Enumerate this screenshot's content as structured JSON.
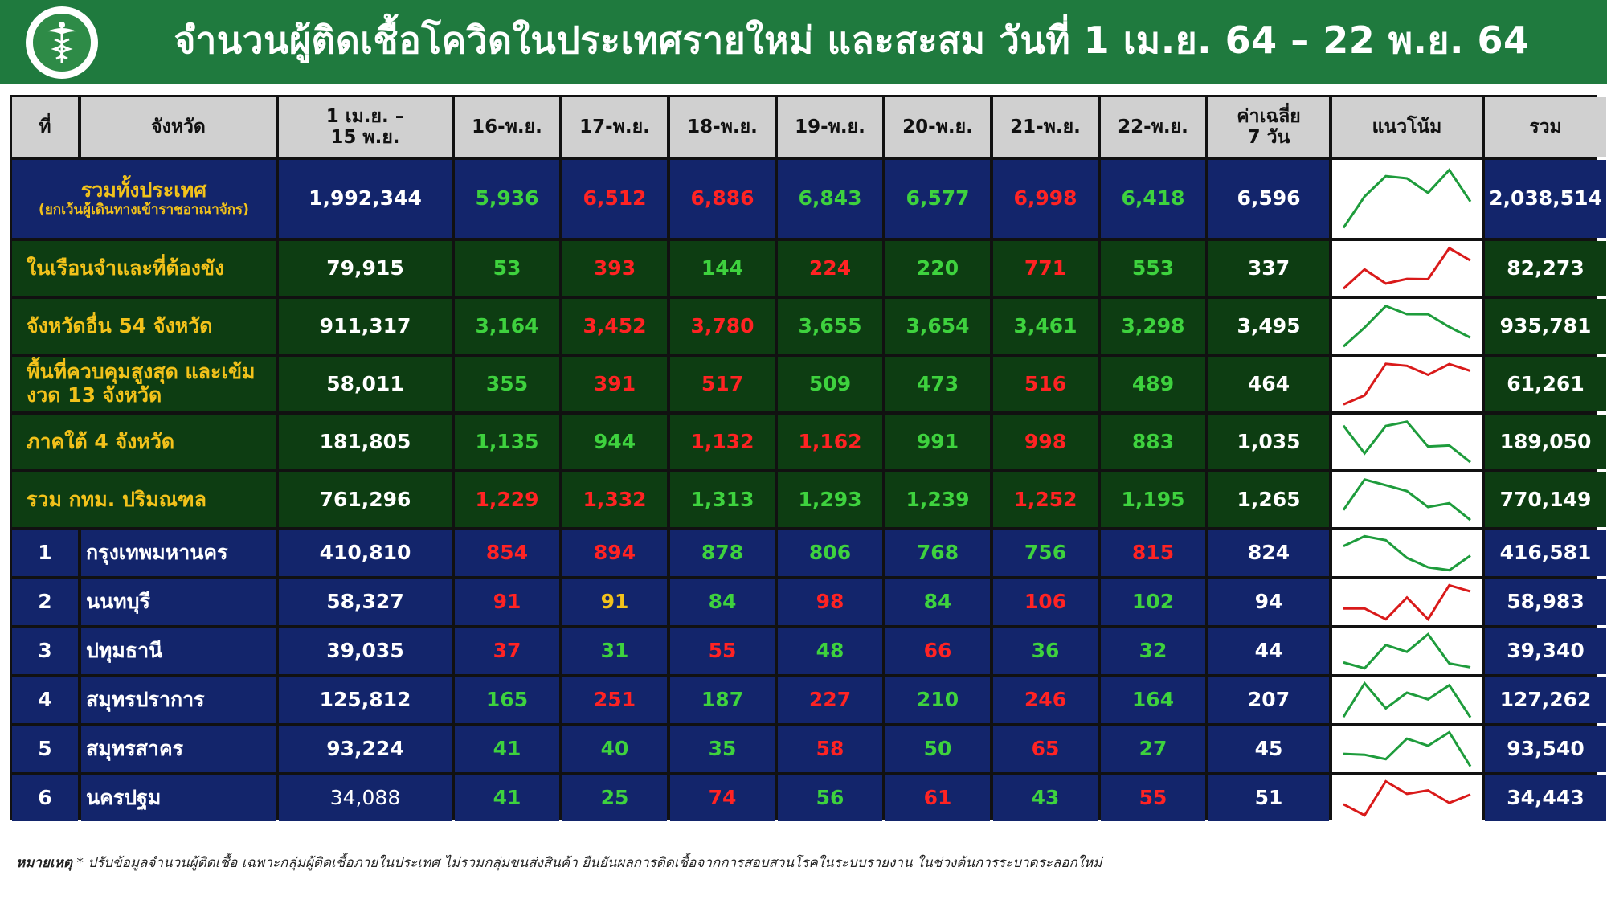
{
  "title": "จำนวนผู้ติดเชื้อโควิดในประเทศรายใหม่ และสะสม วันที่ 1 เม.ย. 64 – 22 พ.ย. 64",
  "colors": {
    "header_green": "#1f7a3e",
    "navy": "#13256b",
    "dark_green": "#0d3d12",
    "increase_red": "#ff2323",
    "decrease_green": "#3ed23e",
    "label_yellow": "#f2c21b"
  },
  "icons": {
    "logo": "ministry-of-public-health-seal"
  },
  "headers": {
    "no": "ที่",
    "province": "จังหวัด",
    "cumulative_line1": "1 เม.ย. –",
    "cumulative_line2": "15 พ.ย.",
    "days": [
      "16-พ.ย.",
      "17-พ.ย.",
      "18-พ.ย.",
      "19-พ.ย.",
      "20-พ.ย.",
      "21-พ.ย.",
      "22-พ.ย."
    ],
    "avg_line1": "ค่าเฉลี่ย",
    "avg_line2": "7 วัน",
    "trend": "แนวโน้ม",
    "total": "รวม"
  },
  "summary_rows": [
    {
      "label": "รวมทั้งประเทศ",
      "sublabel": "(ยกเว้นผู้เดินทางเข้าราชอาณาจักร)",
      "cumulative": "1,992,344",
      "days": [
        "5,936",
        "6,512",
        "6,886",
        "6,843",
        "6,577",
        "6,998",
        "6,418"
      ],
      "day_colors": [
        "g",
        "r",
        "r",
        "g",
        "g",
        "r",
        "g"
      ],
      "avg": "6,596",
      "total": "2,038,514",
      "trend": [
        5936,
        6512,
        6886,
        6843,
        6577,
        6998,
        6418
      ],
      "trend_color": "#1e9c3c"
    },
    {
      "label": "ในเรือนจำและที่ต้องขัง",
      "cumulative": "79,915",
      "days": [
        "53",
        "393",
        "144",
        "224",
        "220",
        "771",
        "553"
      ],
      "day_colors": [
        "g",
        "r",
        "g",
        "r",
        "g",
        "r",
        "g"
      ],
      "avg": "337",
      "total": "82,273",
      "trend": [
        53,
        393,
        144,
        224,
        220,
        771,
        553
      ],
      "trend_color": "#d91a1a"
    },
    {
      "label": "จังหวัดอื่น 54 จังหวัด",
      "cumulative": "911,317",
      "days": [
        "3,164",
        "3,452",
        "3,780",
        "3,655",
        "3,654",
        "3,461",
        "3,298"
      ],
      "day_colors": [
        "g",
        "r",
        "r",
        "g",
        "g",
        "g",
        "g"
      ],
      "avg": "3,495",
      "total": "935,781",
      "trend": [
        3164,
        3452,
        3780,
        3655,
        3654,
        3461,
        3298
      ],
      "trend_color": "#1e9c3c"
    },
    {
      "label": "พื้นที่ควบคุมสูงสุด และเข้มงวด 13 จังหวัด",
      "cumulative": "58,011",
      "days": [
        "355",
        "391",
        "517",
        "509",
        "473",
        "516",
        "489"
      ],
      "day_colors": [
        "g",
        "r",
        "r",
        "g",
        "g",
        "r",
        "g"
      ],
      "avg": "464",
      "total": "61,261",
      "trend": [
        355,
        391,
        517,
        509,
        473,
        516,
        489
      ],
      "trend_color": "#d91a1a"
    },
    {
      "label": "ภาคใต้ 4 จังหวัด",
      "cumulative": "181,805",
      "days": [
        "1,135",
        "944",
        "1,132",
        "1,162",
        "991",
        "998",
        "883"
      ],
      "day_colors": [
        "g",
        "g",
        "r",
        "r",
        "g",
        "r",
        "g"
      ],
      "avg": "1,035",
      "total": "189,050",
      "trend": [
        1135,
        944,
        1132,
        1162,
        991,
        998,
        883
      ],
      "trend_color": "#1e9c3c"
    },
    {
      "label": "รวม กทม. ปริมณฑล",
      "cumulative": "761,296",
      "days": [
        "1,229",
        "1,332",
        "1,313",
        "1,293",
        "1,239",
        "1,252",
        "1,195"
      ],
      "day_colors": [
        "r",
        "r",
        "g",
        "g",
        "g",
        "r",
        "g"
      ],
      "avg": "1,265",
      "total": "770,149",
      "trend": [
        1229,
        1332,
        1313,
        1293,
        1239,
        1252,
        1195
      ],
      "trend_color": "#1e9c3c"
    }
  ],
  "province_rows": [
    {
      "no": "1",
      "name": "กรุงเทพมหานคร",
      "cumulative": "410,810",
      "days": [
        "854",
        "894",
        "878",
        "806",
        "768",
        "756",
        "815"
      ],
      "day_colors": [
        "r",
        "r",
        "g",
        "g",
        "g",
        "g",
        "r"
      ],
      "avg": "824",
      "total": "416,581",
      "trend": [
        854,
        894,
        878,
        806,
        768,
        756,
        815
      ],
      "trend_color": "#1e9c3c"
    },
    {
      "no": "2",
      "name": "นนทบุรี",
      "cumulative": "58,327",
      "days": [
        "91",
        "91",
        "84",
        "98",
        "84",
        "106",
        "102"
      ],
      "day_colors": [
        "r",
        "y",
        "g",
        "r",
        "g",
        "r",
        "g"
      ],
      "avg": "94",
      "total": "58,983",
      "trend": [
        91,
        91,
        84,
        98,
        84,
        106,
        102
      ],
      "trend_color": "#d91a1a"
    },
    {
      "no": "3",
      "name": "ปทุมธานี",
      "cumulative": "39,035",
      "days": [
        "37",
        "31",
        "55",
        "48",
        "66",
        "36",
        "32"
      ],
      "day_colors": [
        "r",
        "g",
        "r",
        "g",
        "r",
        "g",
        "g"
      ],
      "avg": "44",
      "total": "39,340",
      "trend": [
        37,
        31,
        55,
        48,
        66,
        36,
        32
      ],
      "trend_color": "#1e9c3c"
    },
    {
      "no": "4",
      "name": "สมุทรปราการ",
      "cumulative": "125,812",
      "days": [
        "165",
        "251",
        "187",
        "227",
        "210",
        "246",
        "164"
      ],
      "day_colors": [
        "g",
        "r",
        "g",
        "r",
        "g",
        "r",
        "g"
      ],
      "avg": "207",
      "total": "127,262",
      "trend": [
        165,
        251,
        187,
        227,
        210,
        246,
        164
      ],
      "trend_color": "#1e9c3c"
    },
    {
      "no": "5",
      "name": "สมุทรสาคร",
      "cumulative": "93,224",
      "days": [
        "41",
        "40",
        "35",
        "58",
        "50",
        "65",
        "27"
      ],
      "day_colors": [
        "g",
        "g",
        "g",
        "r",
        "g",
        "r",
        "g"
      ],
      "avg": "45",
      "total": "93,540",
      "trend": [
        41,
        40,
        35,
        58,
        50,
        65,
        27
      ],
      "trend_color": "#1e9c3c"
    },
    {
      "no": "6",
      "name": "นครปฐม",
      "cumulative": "34,088",
      "days": [
        "41",
        "25",
        "74",
        "56",
        "61",
        "43",
        "55"
      ],
      "day_colors": [
        "g",
        "g",
        "r",
        "g",
        "r",
        "g",
        "r"
      ],
      "avg": "51",
      "total": "34,443",
      "trend": [
        41,
        25,
        74,
        56,
        61,
        43,
        55
      ],
      "trend_color": "#d91a1a"
    }
  ],
  "note": {
    "prefix": "หมายเหตุ",
    "text": "* ปรับข้อมูลจำนวนผู้ติดเชื้อ เฉพาะกลุ่มผู้ติดเชื้อภายในประเทศ ไม่รวมกลุ่มขนส่งสินค้า ยืนยันผลการติดเชื้อจากการสอบสวนโรคในระบบรายงาน ในช่วงต้นการระบาดระลอกใหม่"
  }
}
